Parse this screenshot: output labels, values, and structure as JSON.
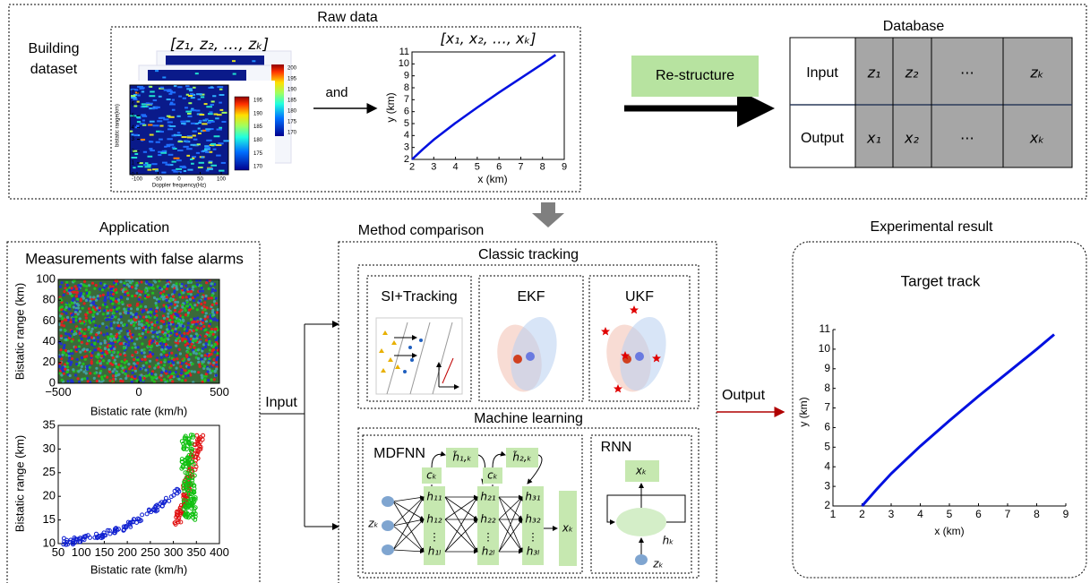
{
  "building": [
    "Building",
    "dataset"
  ],
  "raw_data": {
    "title": "Raw data",
    "heatmap": {
      "title": "[z₁, z₂, …, zₖ]",
      "xlabel": "Doppler frequency(Hz)",
      "ylabel": "bistatic range(km)",
      "xticks": [
        "-100",
        "-50",
        "0",
        "50",
        "100"
      ],
      "yticks": [
        "0",
        "1",
        "2",
        "3",
        "4",
        "5",
        "6",
        "7"
      ],
      "colorbar": [
        "195",
        "190",
        "185",
        "180",
        "175",
        "170"
      ],
      "back_colorbar": [
        "200",
        "195",
        "190",
        "185",
        "180",
        "175",
        "170"
      ]
    },
    "and": "and",
    "track": {
      "title": "[x₁, x₂, …, xₖ]",
      "xlabel": "x (km)",
      "ylabel": "y (km)",
      "xticks": [
        2,
        3,
        4,
        5,
        6,
        7,
        8,
        9
      ],
      "yticks": [
        2,
        3,
        4,
        5,
        6,
        7,
        8,
        9,
        10,
        11
      ]
    }
  },
  "restructure": "Re-structure",
  "database": {
    "title": "Database",
    "rows": [
      [
        "Input",
        "z₁",
        "z₂",
        "⋯",
        "zₖ"
      ],
      [
        "Output",
        "x₁",
        "x₂",
        "⋯",
        "xₖ"
      ]
    ]
  },
  "application": {
    "title": "Application",
    "panel_title": "Measurements with false alarms",
    "plot1": {
      "xlabel": "Bistatic rate (km/h)",
      "ylabel": "Bistatic range (km)",
      "xticks": [
        "−500",
        "0",
        "500"
      ],
      "yticks": [
        0,
        20,
        40,
        60,
        80,
        100
      ]
    },
    "plot2": {
      "xlabel": "Bistatic rate (km/h)",
      "ylabel": "Bistatic range (km)",
      "xticks": [
        50,
        100,
        150,
        200,
        250,
        300,
        350,
        400
      ],
      "yticks": [
        10,
        15,
        20,
        25,
        30,
        35
      ]
    }
  },
  "input": "Input",
  "method": {
    "title": "Method comparison",
    "classic": {
      "title": "Classic tracking",
      "methods": [
        "SI+Tracking",
        "EKF",
        "UKF"
      ]
    },
    "ml": {
      "title": "Machine learning",
      "mdfnn": {
        "title": "MDFNN",
        "input": "zₖ",
        "context": [
          "cₖ",
          "cₖ"
        ],
        "memory": [
          "h̃₁,ₖ",
          "h̃₂,ₖ"
        ],
        "layers": [
          [
            "h₁₁",
            "h₁₂",
            "⋮",
            "h₁ₗ"
          ],
          [
            "h₂₁",
            "h₂₂",
            "⋮",
            "h₂ₗ"
          ],
          [
            "h₃₁",
            "h₃₂",
            "⋮",
            "h₃ₗ"
          ]
        ],
        "output": "xₖ"
      },
      "rnn": {
        "title": "RNN",
        "output": "xₖ",
        "hidden": "hₖ",
        "input": "zₖ"
      }
    }
  },
  "output": "Output",
  "result": {
    "title": "Experimental result",
    "panel_title": "Target track",
    "xlabel": "x (km)",
    "ylabel": "y (km)",
    "xticks": [
      1,
      2,
      3,
      4,
      5,
      6,
      7,
      8,
      9
    ],
    "yticks": [
      2,
      3,
      4,
      5,
      6,
      7,
      8,
      9,
      10,
      11
    ]
  }
}
